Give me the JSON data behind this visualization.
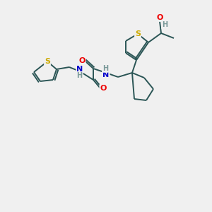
{
  "bg_color": "#f0f0f0",
  "atom_colors": {
    "S": "#ccaa00",
    "N": "#0000cc",
    "O": "#ee0000",
    "H": "#7a9999",
    "C": "#2a5555"
  },
  "bond_color": "#2a5555",
  "bond_width": 1.4,
  "figsize": [
    3.0,
    3.0
  ],
  "dpi": 100
}
